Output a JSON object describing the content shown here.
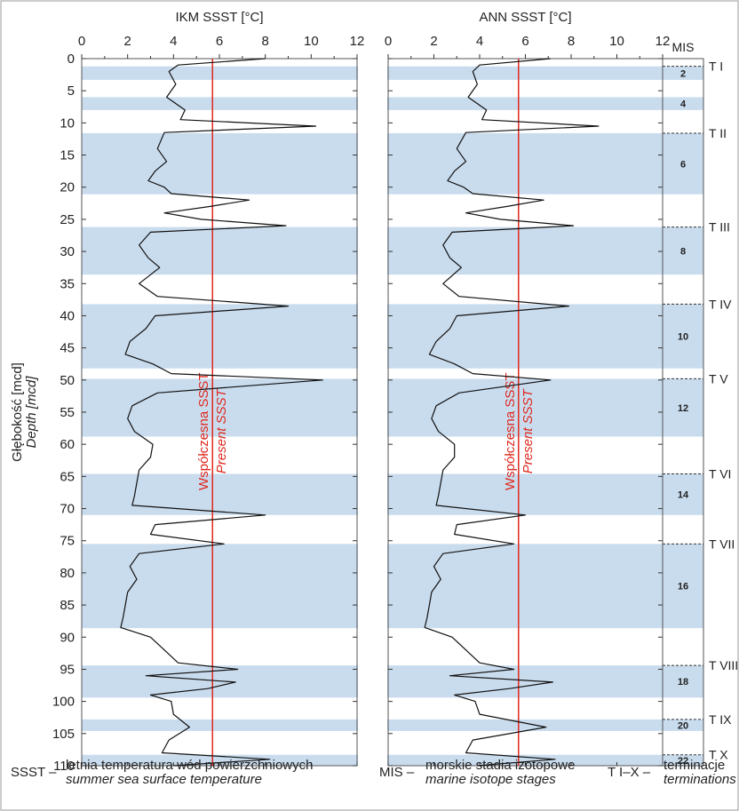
{
  "colors": {
    "band": "#c9dcee",
    "curve": "#111111",
    "present_line": "#e0281e",
    "frame": "#555555"
  },
  "chart_data": {
    "type": "line",
    "y_axis": {
      "label_pl": "Głębokość [mcd]",
      "label_en": "Depth [mcd]",
      "range": [
        0,
        110
      ],
      "ticks": [
        0,
        5,
        10,
        15,
        20,
        25,
        30,
        35,
        40,
        45,
        50,
        55,
        60,
        65,
        70,
        75,
        80,
        85,
        90,
        95,
        100,
        105,
        110
      ],
      "inverted": true
    },
    "panels": [
      {
        "title": "IKM SSST [°C]",
        "xlim": [
          0,
          12
        ],
        "x_ticks": [
          0,
          2,
          4,
          6,
          8,
          10,
          12
        ],
        "present_value": 5.7,
        "present_label_pl": "Współczesna SSST",
        "present_label_en": "Present SSST",
        "series": {
          "depth": [
            0,
            1,
            2,
            4,
            6,
            8,
            9.5,
            10.5,
            11.5,
            14,
            16,
            17.5,
            19,
            20,
            21,
            22,
            23,
            24,
            25,
            26,
            27,
            29,
            31,
            32.5,
            35,
            37,
            38.5,
            40,
            42,
            44,
            46,
            47.5,
            49,
            50,
            52,
            54,
            56,
            58,
            60,
            62,
            64,
            66,
            68,
            69.5,
            71,
            72.5,
            74,
            75.5,
            77,
            79,
            81,
            83,
            85,
            87,
            88.5,
            90,
            92,
            94,
            95,
            96,
            97,
            98,
            99,
            100,
            102,
            104,
            106,
            108,
            109,
            110
          ],
          "sst": [
            8.0,
            4.2,
            3.8,
            4.1,
            3.7,
            4.5,
            4.3,
            10.2,
            3.6,
            3.3,
            3.7,
            3.2,
            2.9,
            3.6,
            3.9,
            7.3,
            5.6,
            3.6,
            5.2,
            8.9,
            3.0,
            2.5,
            2.9,
            3.4,
            2.5,
            3.3,
            9.0,
            3.2,
            2.8,
            2.1,
            1.9,
            3.1,
            3.9,
            10.5,
            3.3,
            2.2,
            2.0,
            2.3,
            3.1,
            3.0,
            2.5,
            2.4,
            2.3,
            2.2,
            8.0,
            3.2,
            3.0,
            6.2,
            2.5,
            2.1,
            2.4,
            2.0,
            1.9,
            1.8,
            1.7,
            3.0,
            3.6,
            4.2,
            6.8,
            2.8,
            6.7,
            5.5,
            3.0,
            3.9,
            4.0,
            4.7,
            3.8,
            3.5,
            8.2,
            4.0
          ]
        }
      },
      {
        "title": "ANN SSST [°C]",
        "xlim": [
          0,
          12
        ],
        "x_ticks": [
          0,
          2,
          4,
          6,
          8,
          10,
          12
        ],
        "present_value": 5.7,
        "present_label_pl": "Współczesna SSST",
        "present_label_en": "Present SSST",
        "series": {
          "depth": [
            0,
            1,
            2,
            4,
            6,
            8,
            9.5,
            10.5,
            11.5,
            14,
            16,
            17.5,
            19,
            20,
            21,
            22,
            23,
            24,
            25,
            26,
            27,
            29,
            31,
            32.5,
            35,
            37,
            38.5,
            40,
            42,
            44,
            46,
            47.5,
            49,
            50,
            52,
            54,
            56,
            58,
            60,
            62,
            64,
            66,
            68,
            69.5,
            71,
            72.5,
            74,
            75.5,
            77,
            79,
            81,
            83,
            85,
            87,
            88.5,
            90,
            92,
            94,
            95,
            96,
            97,
            98,
            99,
            100,
            102,
            104,
            106,
            108,
            109,
            110
          ],
          "sst": [
            7.1,
            4.0,
            3.7,
            3.9,
            3.5,
            4.3,
            4.1,
            9.2,
            3.4,
            3.0,
            3.4,
            2.9,
            2.6,
            3.3,
            3.7,
            6.8,
            5.2,
            3.4,
            4.9,
            8.1,
            2.8,
            2.4,
            2.7,
            3.2,
            2.4,
            3.1,
            7.9,
            3.0,
            2.7,
            2.1,
            1.8,
            2.9,
            3.7,
            7.1,
            3.1,
            2.1,
            1.9,
            2.2,
            2.9,
            2.9,
            2.4,
            2.3,
            2.2,
            2.1,
            6.0,
            3.0,
            2.9,
            5.5,
            2.4,
            2.0,
            2.3,
            1.9,
            1.8,
            1.7,
            1.6,
            2.8,
            3.4,
            4.0,
            5.5,
            2.7,
            7.2,
            5.3,
            2.9,
            3.8,
            4.0,
            6.9,
            3.7,
            3.4,
            7.3,
            3.9
          ]
        }
      }
    ],
    "mis_column": {
      "title": "MIS",
      "bands": [
        {
          "stage": "2",
          "top": 1.2,
          "bottom": 3.3
        },
        {
          "stage": "4",
          "top": 6.0,
          "bottom": 8.0
        },
        {
          "stage": "6",
          "top": 11.6,
          "bottom": 21.1
        },
        {
          "stage": "8",
          "top": 26.2,
          "bottom": 33.6
        },
        {
          "stage": "10",
          "top": 38.2,
          "bottom": 48.2
        },
        {
          "stage": "12",
          "top": 49.8,
          "bottom": 58.8
        },
        {
          "stage": "14",
          "top": 64.6,
          "bottom": 71.0
        },
        {
          "stage": "16",
          "top": 75.5,
          "bottom": 88.6
        },
        {
          "stage": "18",
          "top": 94.4,
          "bottom": 99.4
        },
        {
          "stage": "20",
          "top": 102.8,
          "bottom": 104.6
        },
        {
          "stage": "22",
          "top": 108.3,
          "bottom": 110.0
        }
      ]
    },
    "terminations": [
      {
        "label": "T I",
        "depth": 1.2
      },
      {
        "label": "T II",
        "depth": 11.6
      },
      {
        "label": "T III",
        "depth": 26.2
      },
      {
        "label": "T IV",
        "depth": 38.2
      },
      {
        "label": "T V",
        "depth": 49.8
      },
      {
        "label": "T VI",
        "depth": 64.6
      },
      {
        "label": "T VII",
        "depth": 75.5
      },
      {
        "label": "T VIII",
        "depth": 94.4
      },
      {
        "label": "T IX",
        "depth": 102.8
      },
      {
        "label": "T X",
        "depth": 108.3
      }
    ]
  },
  "legend": {
    "ssst": {
      "key": "SSST –",
      "pl": "letnia temperatura wód powierzchniowych",
      "en": "summer sea surface temperature"
    },
    "mis": {
      "key": "MIS –",
      "pl": "morskie stadia izotopowe",
      "en": "marine isotope stages"
    },
    "term": {
      "key": "T I–X –",
      "pl": "terminacje",
      "en": "terminations"
    }
  }
}
